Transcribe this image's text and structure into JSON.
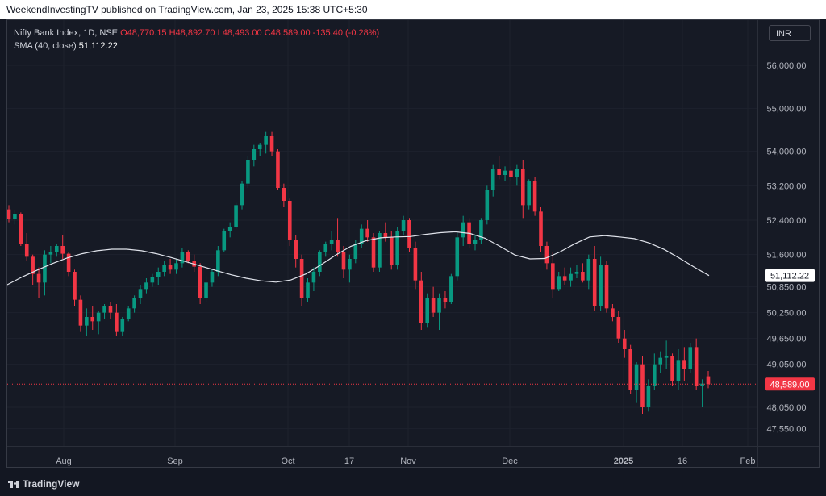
{
  "header": {
    "publish_line": "WeekendInvestingTV published on TradingView.com, Jan 23, 2025 15:38 UTC+5:30"
  },
  "legend": {
    "symbol": "Nifty Bank Index, 1D, NSE",
    "open": "O48,770.15",
    "high": "H48,892.70",
    "low": "L48,493.00",
    "close": "C48,589.00",
    "change": "-135.40 (-0.28%)",
    "sma_label": "SMA (40, close)",
    "sma_value": "51,112.22"
  },
  "currency": "INR",
  "footer": {
    "brand": "TradingView",
    "brand_icon": "tradingview-logo-icon"
  },
  "colors": {
    "up": "#089981",
    "down": "#f23645",
    "sma": "#e0e3eb",
    "last_price": "#f23645",
    "grid": "#1e222d",
    "background": "#161a25"
  },
  "chart_data": {
    "type": "candlestick",
    "title": "Nifty Bank Index, 1D, NSE",
    "ylim": [
      47150,
      57050
    ],
    "y_ticks": [
      "47,550.00",
      "48,050.00",
      "49,050.00",
      "49,650.00",
      "50,250.00",
      "50,850.00",
      "51,600.00",
      "52,400.00",
      "53,200.00",
      "54,000.00",
      "55,000.00",
      "56,000.00"
    ],
    "x_tick_labels": [
      "Aug",
      "Sep",
      "Oct",
      "17",
      "Nov",
      "Dec",
      "2025",
      "16",
      "Feb"
    ],
    "sma_series": {
      "name": "SMA (40, close)",
      "last": 51112.22,
      "values": [
        50900,
        51080,
        51240,
        51390,
        51520,
        51620,
        51690,
        51725,
        51725,
        51690,
        51620,
        51530,
        51430,
        51330,
        51230,
        51130,
        51050,
        50990,
        50960,
        51010,
        51150,
        51360,
        51590,
        51790,
        51920,
        51990,
        52010,
        52020,
        52070,
        52110,
        52130,
        52090,
        51980,
        51790,
        51590,
        51500,
        51510,
        51660,
        51850,
        52010,
        52040,
        52010,
        51970,
        51870,
        51720,
        51520,
        51310,
        51112.22
      ]
    },
    "last_price": {
      "value": 48589.0,
      "label": "48,589.00"
    },
    "sma_price_label": "51,112.22",
    "candles": [
      [
        52650,
        52750,
        52350,
        52430
      ],
      [
        52430,
        52620,
        52300,
        52550
      ],
      [
        52550,
        52580,
        51800,
        51850
      ],
      [
        51850,
        52100,
        51450,
        51550
      ],
      [
        51550,
        51600,
        50900,
        51150
      ],
      [
        51150,
        51300,
        50600,
        50950
      ],
      [
        50950,
        51700,
        50650,
        51600
      ],
      [
        51600,
        51800,
        51400,
        51650
      ],
      [
        51650,
        51850,
        51550,
        51800
      ],
      [
        51800,
        52050,
        51500,
        51620
      ],
      [
        51620,
        51650,
        51100,
        51200
      ],
      [
        51200,
        51250,
        50400,
        50550
      ],
      [
        50550,
        50650,
        49800,
        49950
      ],
      [
        49950,
        50350,
        49700,
        50150
      ],
      [
        50150,
        50400,
        49850,
        50050
      ],
      [
        50050,
        50300,
        49750,
        50250
      ],
      [
        50250,
        50450,
        50100,
        50400
      ],
      [
        50400,
        50500,
        50100,
        50250
      ],
      [
        50250,
        50450,
        49700,
        49800
      ],
      [
        49800,
        50150,
        49700,
        50100
      ],
      [
        50100,
        50400,
        50050,
        50350
      ],
      [
        50350,
        50650,
        50250,
        50600
      ],
      [
        50600,
        50900,
        50450,
        50800
      ],
      [
        50800,
        51050,
        50700,
        50950
      ],
      [
        50950,
        51150,
        50850,
        51080
      ],
      [
        51080,
        51300,
        50900,
        51200
      ],
      [
        51200,
        51450,
        51100,
        51350
      ],
      [
        51350,
        51500,
        51150,
        51250
      ],
      [
        51250,
        51500,
        51150,
        51400
      ],
      [
        51400,
        51750,
        51300,
        51650
      ],
      [
        51650,
        51700,
        51400,
        51450
      ],
      [
        51450,
        51600,
        51200,
        51320
      ],
      [
        51320,
        51400,
        50450,
        50600
      ],
      [
        50600,
        51100,
        50500,
        50950
      ],
      [
        50950,
        51250,
        50850,
        51200
      ],
      [
        51200,
        51800,
        51100,
        51700
      ],
      [
        51700,
        52200,
        51650,
        52150
      ],
      [
        52150,
        52350,
        52000,
        52250
      ],
      [
        52250,
        52800,
        52200,
        52750
      ],
      [
        52750,
        53300,
        52650,
        53250
      ],
      [
        53250,
        53900,
        53150,
        53800
      ],
      [
        53800,
        54150,
        53650,
        54050
      ],
      [
        54050,
        54200,
        53900,
        54150
      ],
      [
        54150,
        54450,
        53950,
        54350
      ],
      [
        54350,
        54450,
        53900,
        54000
      ],
      [
        54000,
        54050,
        53100,
        53150
      ],
      [
        53150,
        53250,
        52700,
        52850
      ],
      [
        52850,
        52900,
        51800,
        51950
      ],
      [
        51950,
        52050,
        51300,
        51500
      ],
      [
        51500,
        51600,
        50400,
        50600
      ],
      [
        50600,
        51050,
        50500,
        50950
      ],
      [
        50950,
        51300,
        50750,
        51200
      ],
      [
        51200,
        51700,
        51100,
        51650
      ],
      [
        51650,
        51900,
        51550,
        51850
      ],
      [
        51850,
        52150,
        51700,
        51950
      ],
      [
        51950,
        52450,
        51550,
        51650
      ],
      [
        51650,
        51800,
        51050,
        51250
      ],
      [
        51250,
        51600,
        50950,
        51500
      ],
      [
        51500,
        51950,
        51400,
        51850
      ],
      [
        51850,
        52300,
        51750,
        52200
      ],
      [
        52200,
        52400,
        51900,
        52000
      ],
      [
        52000,
        52100,
        51200,
        51300
      ],
      [
        51300,
        52150,
        51200,
        52100
      ],
      [
        52100,
        52350,
        51900,
        52000
      ],
      [
        52000,
        52150,
        51250,
        51350
      ],
      [
        51350,
        52250,
        51250,
        52150
      ],
      [
        52150,
        52500,
        52050,
        52400
      ],
      [
        52400,
        52450,
        51650,
        51750
      ],
      [
        51750,
        51900,
        50800,
        51000
      ],
      [
        51000,
        51200,
        49850,
        50000
      ],
      [
        50000,
        50700,
        49900,
        50600
      ],
      [
        50600,
        50850,
        50150,
        50250
      ],
      [
        50250,
        50700,
        49850,
        50600
      ],
      [
        50600,
        50750,
        50350,
        50500
      ],
      [
        50500,
        51150,
        50450,
        51100
      ],
      [
        51100,
        52100,
        51000,
        52000
      ],
      [
        52000,
        52500,
        51800,
        52350
      ],
      [
        52350,
        52450,
        51750,
        51850
      ],
      [
        51850,
        52050,
        51700,
        51950
      ],
      [
        51950,
        52450,
        51850,
        52400
      ],
      [
        52400,
        53200,
        52300,
        53100
      ],
      [
        53100,
        53700,
        52950,
        53600
      ],
      [
        53600,
        53900,
        53350,
        53450
      ],
      [
        53450,
        53650,
        53300,
        53550
      ],
      [
        53550,
        53650,
        53300,
        53400
      ],
      [
        53400,
        53700,
        53200,
        53600
      ],
      [
        53600,
        53800,
        52450,
        52750
      ],
      [
        52750,
        53350,
        52650,
        53300
      ],
      [
        53300,
        53400,
        52500,
        52600
      ],
      [
        52600,
        52700,
        51650,
        51800
      ],
      [
        51800,
        51900,
        51250,
        51400
      ],
      [
        51400,
        51650,
        50600,
        50800
      ],
      [
        50800,
        51200,
        50750,
        51100
      ],
      [
        51100,
        51300,
        50900,
        51000
      ],
      [
        51000,
        51300,
        50850,
        51150
      ],
      [
        51150,
        51350,
        51050,
        51200
      ],
      [
        51200,
        51400,
        50950,
        51000
      ],
      [
        51000,
        51600,
        50800,
        51500
      ],
      [
        51500,
        51800,
        50300,
        50400
      ],
      [
        50400,
        51550,
        50300,
        51350
      ],
      [
        51350,
        51450,
        50250,
        50350
      ],
      [
        50350,
        50450,
        50050,
        50150
      ],
      [
        50150,
        50300,
        49550,
        49650
      ],
      [
        49650,
        49850,
        49200,
        49400
      ],
      [
        49400,
        49500,
        48350,
        48450
      ],
      [
        48450,
        49100,
        48150,
        49050
      ],
      [
        49050,
        49250,
        47900,
        48050
      ],
      [
        48050,
        48700,
        47950,
        48550
      ],
      [
        48550,
        49300,
        48450,
        49050
      ],
      [
        49050,
        49350,
        48850,
        49200
      ],
      [
        49200,
        49600,
        48950,
        49250
      ],
      [
        49250,
        49300,
        48550,
        48650
      ],
      [
        48650,
        49400,
        48450,
        49150
      ],
      [
        49150,
        49450,
        48650,
        48950
      ],
      [
        48950,
        49550,
        48850,
        49450
      ],
      [
        49450,
        49650,
        48450,
        48550
      ],
      [
        48550,
        48700,
        48050,
        48600
      ],
      [
        48770.15,
        48892.7,
        48493.0,
        48589.0
      ]
    ]
  }
}
